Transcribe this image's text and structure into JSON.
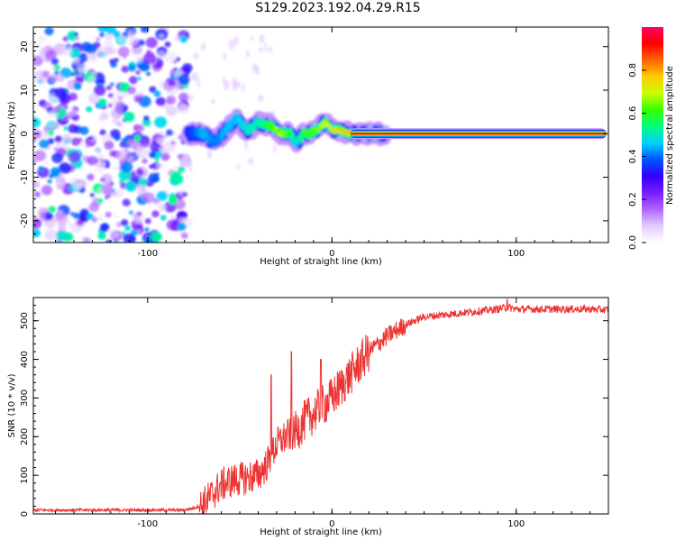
{
  "figure": {
    "title": "S129.2023.192.04.29.R15"
  },
  "colors": {
    "snr_line": "#ee3333",
    "colormap": [
      "#ffffff",
      "#e3ccff",
      "#b066ff",
      "#7a1aff",
      "#3300ff",
      "#0055ff",
      "#00d0ff",
      "#00ff80",
      "#33ff00",
      "#c8ff00",
      "#ffcc00",
      "#ff6600",
      "#ff0000",
      "#ff0066"
    ]
  },
  "chart_data": [
    {
      "type": "heatmap",
      "title": "",
      "xlabel": "Height of straight line (km)",
      "ylabel": "Frequency (Hz)",
      "xlim": [
        -162,
        150
      ],
      "ylim": [
        -25,
        24.5
      ],
      "xticks": [
        -100,
        0,
        100
      ],
      "yticks": [
        -20,
        -10,
        0,
        10,
        20
      ],
      "colorbar": {
        "label": "Normalized spectral amplitude",
        "range": [
          0,
          1
        ],
        "ticks": [
          "0.0",
          "0.2",
          "0.4",
          "0.6",
          "0.8"
        ]
      },
      "description_of_values": "Diffuse low-amplitude noise (0.05-0.5) for heights below about -80 km; concentrated energy near 0 Hz rising from -80 km to 30 km; a continuous high-amplitude (~0.9) line at 0 Hz from about 0 km to 150 km.",
      "ridge": {
        "x": [
          -78,
          -70,
          -64,
          -58,
          -52,
          -46,
          -40,
          -34,
          -28,
          -22,
          -19,
          -16,
          -12,
          -8,
          -4,
          0,
          6,
          12,
          20,
          30,
          60,
          100,
          148
        ],
        "y": [
          0,
          0,
          -2,
          0.5,
          3.5,
          0.5,
          2.5,
          2,
          0,
          0,
          -2.5,
          0,
          0,
          1,
          2.5,
          1,
          0.5,
          0,
          0,
          0,
          0,
          0,
          0
        ],
        "amplitude": [
          0.35,
          0.45,
          0.4,
          0.45,
          0.45,
          0.5,
          0.5,
          0.6,
          0.7,
          0.55,
          0.45,
          0.6,
          0.6,
          0.65,
          0.7,
          0.75,
          0.8,
          0.85,
          0.88,
          0.9,
          0.92,
          0.92,
          0.92
        ]
      }
    },
    {
      "type": "line",
      "title": "",
      "xlabel": "Height of straight line (km)",
      "ylabel": "SNR (10 * v/v)",
      "xlim": [
        -162,
        150
      ],
      "ylim": [
        0,
        560
      ],
      "xticks": [
        -100,
        0,
        100
      ],
      "yticks": [
        0,
        100,
        200,
        300,
        400,
        500
      ],
      "series": [
        {
          "color": "#ee3333",
          "x": [
            -162,
            -140,
            -120,
            -100,
            -90,
            -80,
            -75,
            -70,
            -65,
            -60,
            -55,
            -50,
            -45,
            -40,
            -35,
            -30,
            -25,
            -20,
            -15,
            -10,
            -5,
            0,
            5,
            10,
            15,
            20,
            25,
            30,
            40,
            50,
            60,
            70,
            80,
            90,
            95,
            100,
            110,
            120,
            130,
            140,
            150
          ],
          "values": [
            10,
            10,
            10,
            10,
            10,
            10,
            15,
            25,
            50,
            75,
            85,
            90,
            95,
            100,
            130,
            180,
            200,
            210,
            240,
            260,
            280,
            300,
            330,
            360,
            390,
            420,
            440,
            460,
            490,
            510,
            515,
            520,
            525,
            530,
            535,
            530,
            530,
            530,
            530,
            530,
            528
          ]
        }
      ],
      "spikes": [
        {
          "x": -33,
          "value": 360
        },
        {
          "x": -22,
          "value": 420
        },
        {
          "x": -6,
          "value": 400
        },
        {
          "x": 95,
          "value": 555
        }
      ]
    }
  ]
}
